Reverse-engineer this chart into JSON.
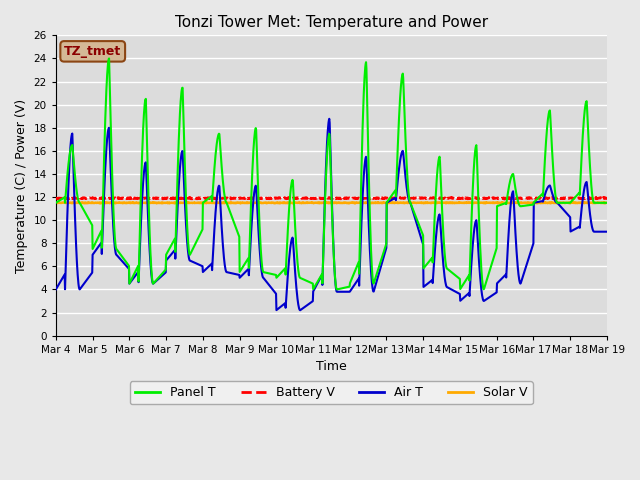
{
  "title": "Tonzi Tower Met: Temperature and Power",
  "ylabel": "Temperature (C) / Power (V)",
  "xlabel": "Time",
  "ylim": [
    0,
    26
  ],
  "yticks": [
    0,
    2,
    4,
    6,
    8,
    10,
    12,
    14,
    16,
    18,
    20,
    22,
    24,
    26
  ],
  "xtick_labels": [
    "Mar 4",
    "Mar 5",
    "Mar 6",
    "Mar 7",
    "Mar 8",
    "Mar 9",
    "Mar 10",
    "Mar 11",
    "Mar 12",
    "Mar 13",
    "Mar 14",
    "Mar 15",
    "Mar 16",
    "Mar 17",
    "Mar 18",
    "Mar 19"
  ],
  "background_color": "#e8e8e8",
  "plot_bg_color": "#dcdcdc",
  "grid_color": "#ffffff",
  "annotation_text": "TZ_tmet",
  "annotation_bg": "#d4b896",
  "annotation_border": "#8B4513",
  "annotation_text_color": "#8B0000",
  "legend": [
    {
      "label": "Panel T",
      "color": "#00ee00",
      "linestyle": "-",
      "lw": 1.5
    },
    {
      "label": "Battery V",
      "color": "#ff0000",
      "linestyle": "--",
      "lw": 1.8
    },
    {
      "label": "Air T",
      "color": "#0000cc",
      "linestyle": "-",
      "lw": 1.5
    },
    {
      "label": "Solar V",
      "color": "#ffaa00",
      "linestyle": "-",
      "lw": 1.8
    }
  ],
  "battery_v_mean": 11.9,
  "solar_v_mean": 11.5,
  "days": 15,
  "panel_t_peaks": [
    16.5,
    24.0,
    20.5,
    21.5,
    17.5,
    18.0,
    13.5,
    17.5,
    23.7,
    22.7,
    15.5,
    16.5,
    14.0,
    19.5,
    20.3
  ],
  "panel_t_troughs": [
    11.5,
    7.5,
    4.5,
    7.0,
    11.5,
    5.5,
    5.0,
    4.0,
    4.5,
    11.5,
    5.8,
    4.0,
    11.2,
    11.5,
    11.5
  ],
  "air_t_peaks": [
    17.5,
    18.0,
    15.0,
    16.0,
    13.0,
    13.0,
    8.5,
    18.8,
    15.5,
    16.0,
    10.5,
    10.0,
    12.5,
    13.0,
    13.3
  ],
  "air_t_troughs": [
    4.0,
    7.0,
    4.5,
    6.5,
    5.5,
    5.0,
    2.2,
    3.8,
    3.8,
    11.5,
    4.2,
    3.0,
    4.5,
    11.5,
    9.0
  ]
}
